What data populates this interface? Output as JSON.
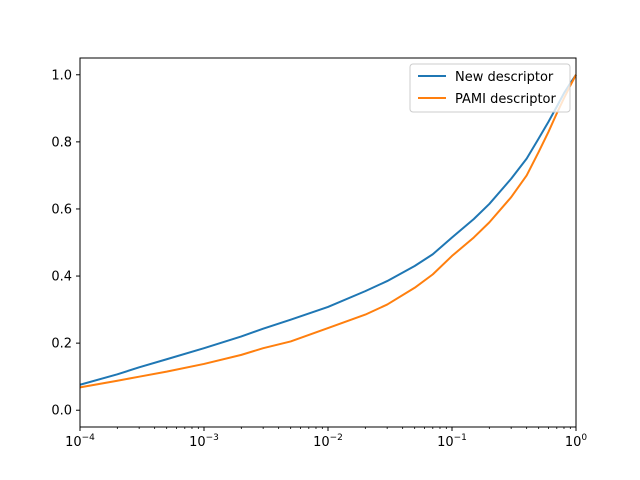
{
  "chart_data": {
    "type": "line",
    "title": "",
    "xlabel": "",
    "ylabel": "",
    "xscale": "log",
    "xlim": [
      0.0001,
      1
    ],
    "ylim": [
      -0.05,
      1.05
    ],
    "grid": false,
    "legend_position": "top-right",
    "x_ticks": [
      {
        "value": 0.0001,
        "base": "10",
        "exp": "−4"
      },
      {
        "value": 0.001,
        "base": "10",
        "exp": "−3"
      },
      {
        "value": 0.01,
        "base": "10",
        "exp": "−2"
      },
      {
        "value": 0.1,
        "base": "10",
        "exp": "−1"
      },
      {
        "value": 1,
        "base": "10",
        "exp": "0"
      }
    ],
    "y_ticks": [
      {
        "value": 0.0,
        "label": "0.0"
      },
      {
        "value": 0.2,
        "label": "0.2"
      },
      {
        "value": 0.4,
        "label": "0.4"
      },
      {
        "value": 0.6,
        "label": "0.6"
      },
      {
        "value": 0.8,
        "label": "0.8"
      },
      {
        "value": 1.0,
        "label": "1.0"
      }
    ],
    "series": [
      {
        "name": "New descriptor",
        "color": "#1f77b4",
        "points": [
          [
            0.0001,
            0.076
          ],
          [
            0.0002,
            0.107
          ],
          [
            0.0003,
            0.128
          ],
          [
            0.0005,
            0.152
          ],
          [
            0.001,
            0.185
          ],
          [
            0.002,
            0.22
          ],
          [
            0.003,
            0.243
          ],
          [
            0.005,
            0.27
          ],
          [
            0.01,
            0.308
          ],
          [
            0.02,
            0.355
          ],
          [
            0.03,
            0.385
          ],
          [
            0.05,
            0.43
          ],
          [
            0.07,
            0.465
          ],
          [
            0.1,
            0.515
          ],
          [
            0.15,
            0.57
          ],
          [
            0.2,
            0.615
          ],
          [
            0.3,
            0.69
          ],
          [
            0.4,
            0.75
          ],
          [
            0.5,
            0.81
          ],
          [
            0.6,
            0.86
          ],
          [
            0.7,
            0.905
          ],
          [
            0.8,
            0.945
          ],
          [
            0.9,
            0.975
          ],
          [
            1.0,
            1.0
          ]
        ]
      },
      {
        "name": "PAMI descriptor",
        "color": "#ff7f0e",
        "points": [
          [
            0.0001,
            0.068
          ],
          [
            0.0002,
            0.088
          ],
          [
            0.0003,
            0.1
          ],
          [
            0.0005,
            0.115
          ],
          [
            0.001,
            0.138
          ],
          [
            0.002,
            0.165
          ],
          [
            0.003,
            0.185
          ],
          [
            0.005,
            0.205
          ],
          [
            0.01,
            0.245
          ],
          [
            0.02,
            0.285
          ],
          [
            0.03,
            0.315
          ],
          [
            0.05,
            0.365
          ],
          [
            0.07,
            0.405
          ],
          [
            0.1,
            0.46
          ],
          [
            0.15,
            0.515
          ],
          [
            0.2,
            0.56
          ],
          [
            0.3,
            0.635
          ],
          [
            0.4,
            0.7
          ],
          [
            0.5,
            0.77
          ],
          [
            0.6,
            0.83
          ],
          [
            0.7,
            0.885
          ],
          [
            0.8,
            0.93
          ],
          [
            0.9,
            0.968
          ],
          [
            1.0,
            1.0
          ]
        ]
      }
    ]
  }
}
